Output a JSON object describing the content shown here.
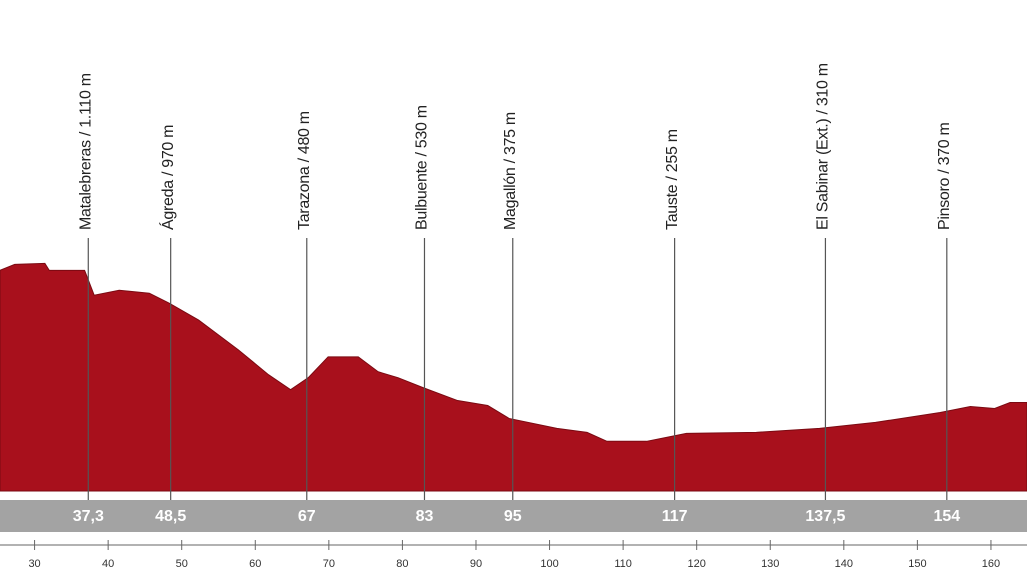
{
  "chart_data": {
    "type": "area",
    "color": "#a8101c",
    "x": [
      25.3,
      27.3,
      31.4,
      32.0,
      36.8,
      38.1,
      41.5,
      45.6,
      48.3,
      52.3,
      57.7,
      61.8,
      64.8,
      67.2,
      69.9,
      74.0,
      76.7,
      79.4,
      82.8,
      87.5,
      91.6,
      94.5,
      101.0,
      105.1,
      107.8,
      113.2,
      118.6,
      128.1,
      136.7,
      144.3,
      153.1,
      157.2,
      160.5,
      162.6,
      164.9
    ],
    "series": [
      {
        "values": [
          1110,
          1140,
          1145,
          1110,
          1110,
          985,
          1010,
          995,
          945,
          860,
          710,
          585,
          510,
          570,
          675,
          675,
          600,
          570,
          520,
          455,
          430,
          365,
          315,
          295,
          250,
          250,
          290,
          295,
          315,
          345,
          395,
          425,
          415,
          445,
          445
        ]
      }
    ],
    "xlim": [
      25.3,
      164.9
    ],
    "ylim": [
      0,
      2470
    ],
    "xticks": [
      30,
      40,
      50,
      60,
      70,
      80,
      90,
      100,
      110,
      120,
      130,
      140,
      150,
      160
    ],
    "landmarks": [
      {
        "label": "Matalebreras / 1.110 m",
        "km": 37.3,
        "km_label": "37,3"
      },
      {
        "label": "Ágreda / 970 m",
        "km": 48.5,
        "km_label": "48,5"
      },
      {
        "label": "Tarazona / 480 m",
        "km": 67,
        "km_label": "67"
      },
      {
        "label": "Bulbuente / 530 m",
        "km": 83,
        "km_label": "83"
      },
      {
        "label": "Magallón / 375 m",
        "km": 95,
        "km_label": "95"
      },
      {
        "label": "Tauste / 255 m",
        "km": 117,
        "km_label": "117"
      },
      {
        "label": "El Sabinar (Ext.) / 310 m",
        "km": 137.5,
        "km_label": "137,5"
      },
      {
        "label": "Pinsoro / 370 m",
        "km": 154,
        "km_label": "154"
      }
    ]
  }
}
